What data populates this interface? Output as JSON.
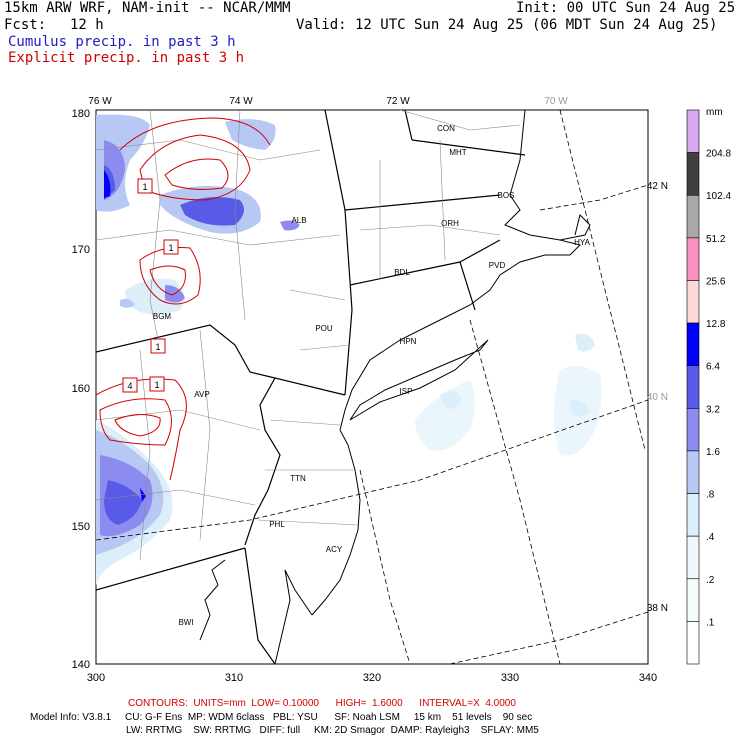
{
  "header": {
    "model_title": "15km ARW WRF, NAM-init -- NCAR/MMM",
    "init": "Init: 00 UTC Sun 24 Aug 25",
    "fcst_label": "Fcst:",
    "fcst_value": "12 h",
    "valid": "Valid: 12 UTC Sun 24 Aug 25 (06 MDT Sun 24 Aug 25)",
    "line_cumulus": "Cumulus precip. in past 3 h",
    "line_explicit": "Explicit precip. in past 3 h"
  },
  "colors": {
    "cumulus_text": "#2020c0",
    "explicit_text": "#d00000",
    "explicit_contour": "#d00000",
    "shade_light": "#dceefa",
    "shade_lightblue": "#b8c8f4",
    "shade_mid": "#8c8cf0",
    "shade_strong": "#5a5ae8",
    "shade_dark": "#0000ff"
  },
  "map": {
    "x_ticks": [
      "300",
      "310",
      "320",
      "330",
      "340"
    ],
    "y_ticks": [
      "140",
      "150",
      "160",
      "170",
      "180"
    ],
    "lon_labels": [
      "76 W",
      "74 W",
      "72 W",
      "70 W"
    ],
    "lat_labels": [
      "42 N",
      "40 N",
      "38 N"
    ],
    "cities": [
      "CON",
      "MHT",
      "BOS",
      "ORH",
      "HYA",
      "ALB",
      "PVD",
      "BDL",
      "BGM",
      "POU",
      "HPN",
      "AVP",
      "ISP",
      "TTN",
      "PHL",
      "ACY",
      "BWI"
    ],
    "contour_labels": [
      "1",
      "1",
      "1",
      "4",
      "1"
    ]
  },
  "legend": {
    "unit": "mm",
    "levels": [
      "204.8",
      "102.4",
      "51.2",
      "25.6",
      "12.8",
      "6.4",
      "3.2",
      "1.6",
      ".8",
      ".4",
      ".2",
      ".1"
    ],
    "colors": [
      "#d8a8f0",
      "#404040",
      "#a8a8a8",
      "#f890c0",
      "#fcd8d8",
      "#0000ff",
      "#5a5ae8",
      "#8c8cf0",
      "#b8c8f4",
      "#dceefa",
      "#eef8fc",
      "#f4fcfc",
      "#ffffff"
    ]
  },
  "footer": {
    "contours": "CONTOURS:  UNITS=mm  LOW= 0.10000      HIGH=  1.6000      INTERVAL=X  4.0000",
    "model_info_1": "Model Info: V3.8.1     CU: G-F Ens  MP: WDM 6class   PBL: YSU      SF: Noah LSM     15 km    51 levels    90 sec",
    "model_info_2": "LW: RRTMG    SW: RRTMG   DIFF: full     KM: 2D Smagor  DAMP: Rayleigh3    SFLAY: MM5"
  }
}
